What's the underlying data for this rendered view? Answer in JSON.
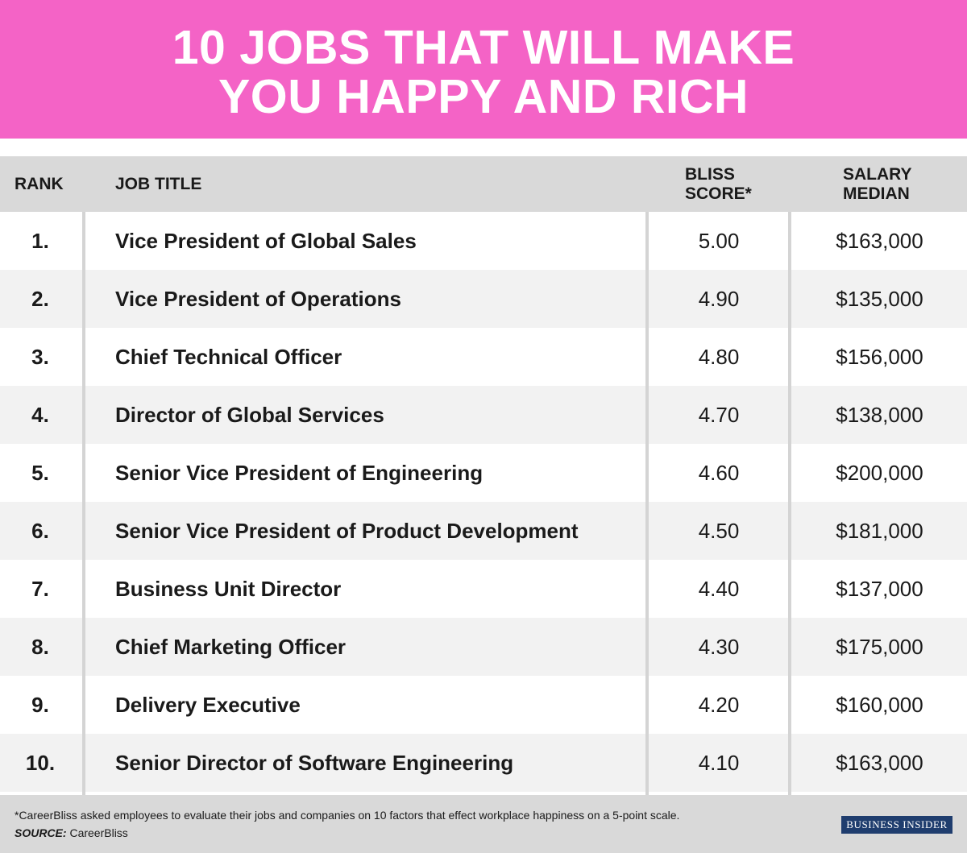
{
  "title_line1": "10 JOBS THAT WILL MAKE",
  "title_line2": "YOU HAPPY AND RICH",
  "colors": {
    "banner": "#f463c6",
    "header_bg": "#d9d9d9",
    "row_alt": "#f2f2f2",
    "logo_bg": "#1f3d6e"
  },
  "chart_data": {
    "type": "table",
    "columns": {
      "rank": "RANK",
      "job_title": "JOB TITLE",
      "bliss_line1": "BLISS",
      "bliss_line2": "SCORE*",
      "salary_line1": "SALARY",
      "salary_line2": "MEDIAN"
    },
    "rows": [
      {
        "rank": "1.",
        "title": "Vice President of Global Sales",
        "bliss": "5.00",
        "salary": "$163,000"
      },
      {
        "rank": "2.",
        "title": "Vice President of Operations",
        "bliss": "4.90",
        "salary": "$135,000"
      },
      {
        "rank": "3.",
        "title": "Chief Technical Officer",
        "bliss": "4.80",
        "salary": "$156,000"
      },
      {
        "rank": "4.",
        "title": "Director of Global Services",
        "bliss": "4.70",
        "salary": "$138,000"
      },
      {
        "rank": "5.",
        "title": "Senior Vice President of Engineering",
        "bliss": "4.60",
        "salary": "$200,000"
      },
      {
        "rank": "6.",
        "title": "Senior Vice President of Product Development",
        "bliss": "4.50",
        "salary": "$181,000"
      },
      {
        "rank": "7.",
        "title": "Business Unit Director",
        "bliss": "4.40",
        "salary": "$137,000"
      },
      {
        "rank": "8.",
        "title": "Chief Marketing Officer",
        "bliss": "4.30",
        "salary": "$175,000"
      },
      {
        "rank": "9.",
        "title": "Delivery Executive",
        "bliss": "4.20",
        "salary": "$160,000"
      },
      {
        "rank": "10.",
        "title": "Senior Director of Software Engineering",
        "bliss": "4.10",
        "salary": "$163,000"
      }
    ]
  },
  "footer": {
    "note": "*CareerBliss asked employees to evaluate their jobs and companies on 10 factors that effect workplace happiness on a 5-point scale.",
    "source_label": "SOURCE:",
    "source_value": " CareerBliss",
    "logo_text": "BUSINESS INSIDER"
  }
}
